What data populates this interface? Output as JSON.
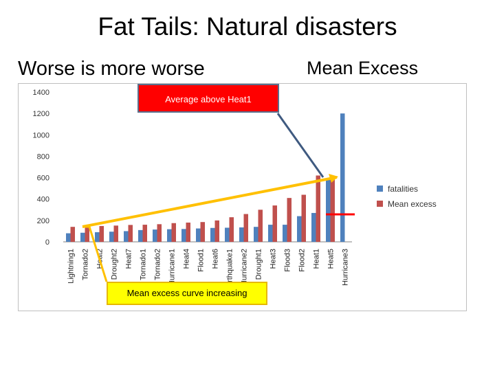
{
  "slide": {
    "title": "Fat Tails:  Natural disasters",
    "subtitle_left": "Worse is more worse",
    "subtitle_right": "Mean Excess",
    "callout_top": "Average above Heat1",
    "callout_bottom": "Mean excess curve increasing"
  },
  "chart_data": {
    "type": "bar",
    "categories": [
      "Lightning1",
      "Tornado2",
      "Heat2",
      "Drought2",
      "Heat7",
      "Tornado1",
      "Tornado2",
      "Hurricane1",
      "Heat4",
      "Flood1",
      "Heat6",
      "Earthquake1",
      "Hurricane2",
      "Drought1",
      "Heat3",
      "Flood3",
      "Flood2",
      "Heat1",
      "Heat5",
      "Hurricane3"
    ],
    "series": [
      {
        "name": "fatalities",
        "color": "#4f81bd",
        "values": [
          80,
          85,
          90,
          95,
          100,
          110,
          115,
          118,
          120,
          125,
          130,
          132,
          135,
          140,
          160,
          160,
          240,
          270,
          590,
          1200
        ]
      },
      {
        "name": "Mean excess",
        "color": "#c0504d",
        "values": [
          140,
          145,
          148,
          152,
          158,
          160,
          165,
          175,
          180,
          185,
          200,
          230,
          260,
          300,
          340,
          410,
          440,
          620,
          600,
          0
        ]
      }
    ],
    "ylim": [
      0,
      1400
    ],
    "yticks": [
      0,
      200,
      400,
      600,
      800,
      1000,
      1200,
      1400
    ],
    "legend": "right"
  }
}
